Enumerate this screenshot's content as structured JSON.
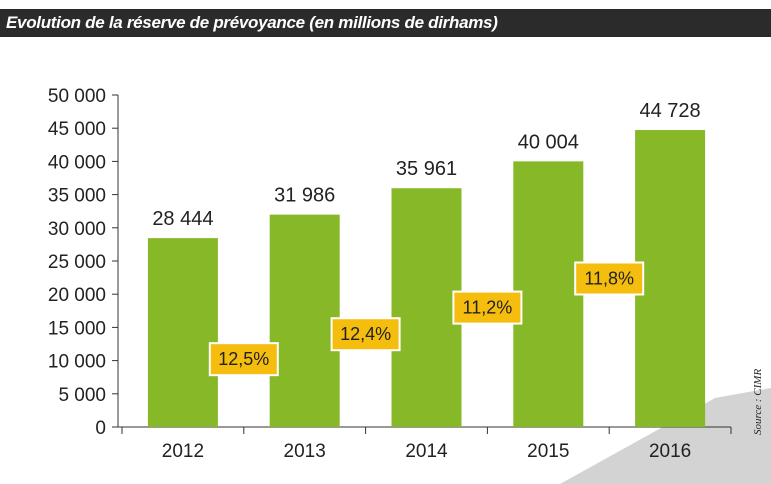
{
  "header": {
    "title": "Evolution de la réserve de prévoyance (en millions de dirhams)"
  },
  "source": "Source : CIMR",
  "colors": {
    "bar": "#86b828",
    "badge_fill": "#f5bd0e",
    "badge_border": "#ffffff",
    "title_bg": "#2b2b2b",
    "corner_shape": "#d3d3d3"
  },
  "chart_data": {
    "type": "bar",
    "categories": [
      "2012",
      "2013",
      "2014",
      "2015",
      "2016"
    ],
    "values": [
      28444,
      31986,
      35961,
      40004,
      44728
    ],
    "value_labels": [
      "28 444",
      "31 986",
      "35 961",
      "40 004",
      "44 728"
    ],
    "growth_labels": [
      "12,5%",
      "12,4%",
      "11,2%",
      "11,8%"
    ],
    "yticks": [
      "0",
      "5 000",
      "10 000",
      "15 000",
      "20 000",
      "25 000",
      "30 000",
      "35 000",
      "40 000",
      "45 000",
      "50 000"
    ],
    "ylim": [
      0,
      50000
    ],
    "title": "Evolution de la réserve de prévoyance (en millions de dirhams)",
    "xlabel": "",
    "ylabel": "",
    "grid": false,
    "legend": "none"
  }
}
